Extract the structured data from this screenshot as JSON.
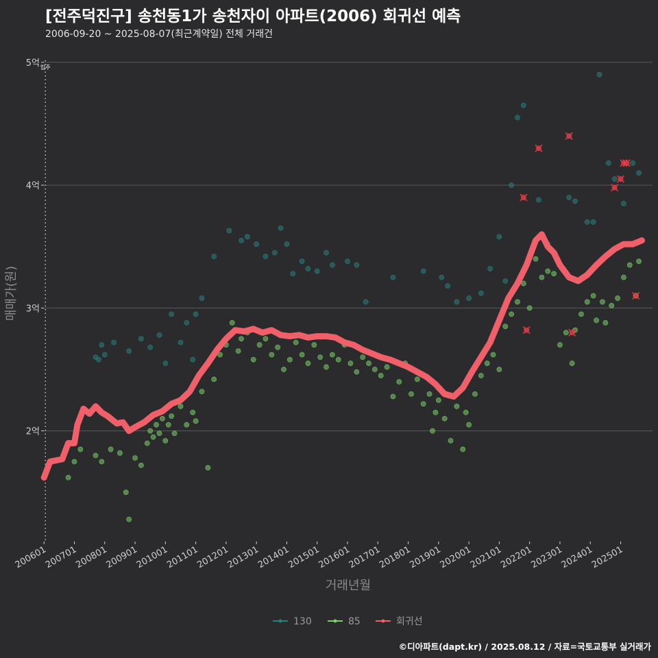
{
  "header": {
    "title": "[전주덕진구] 송천동1가 송천자이 아파트(2006) 회귀선 예측",
    "subtitle": "2006-09-20 ~ 2025-08-07(최근계약일) 전체 거래건"
  },
  "footer": {
    "credit": "©디아파트(dapt.kr) / 2025.08.12 / 자료=국토교통부 실거래가"
  },
  "colors": {
    "background": "#2b2b2d",
    "grid": "#5a5a5a",
    "series_130": "#2a7f7f",
    "series_85": "#7ccf6a",
    "regression": "#f0606a",
    "marker_x": "#e0303a"
  },
  "chart_data": {
    "type": "scatter",
    "title": "[전주덕진구] 송천동1가 송천자이 아파트(2006) 회귀선 예측",
    "xlabel": "거래년월",
    "ylabel": "매매가(원)",
    "xlim": [
      2005.95,
      2026.05
    ],
    "ylim": [
      1.1,
      5.15
    ],
    "y_ticks": [
      {
        "value": 2,
        "label": "2억"
      },
      {
        "value": 3,
        "label": "3억"
      },
      {
        "value": 4,
        "label": "4억"
      },
      {
        "value": 5,
        "label": "5억"
      }
    ],
    "x_ticks": [
      {
        "value": 2006,
        "label": "200601"
      },
      {
        "value": 2007,
        "label": "200701"
      },
      {
        "value": 2008,
        "label": "200801"
      },
      {
        "value": 2009,
        "label": "200901"
      },
      {
        "value": 2010,
        "label": "201001"
      },
      {
        "value": 2011,
        "label": "201101"
      },
      {
        "value": 2012,
        "label": "201201"
      },
      {
        "value": 2013,
        "label": "201301"
      },
      {
        "value": 2014,
        "label": "201401"
      },
      {
        "value": 2015,
        "label": "201501"
      },
      {
        "value": 2016,
        "label": "201601"
      },
      {
        "value": 2017,
        "label": "201701"
      },
      {
        "value": 2018,
        "label": "201801"
      },
      {
        "value": 2019,
        "label": "201901"
      },
      {
        "value": 2020,
        "label": "202001"
      },
      {
        "value": 2021,
        "label": "202101"
      },
      {
        "value": 2022,
        "label": "202201"
      },
      {
        "value": 2023,
        "label": "202301"
      },
      {
        "value": 2024,
        "label": "202401"
      },
      {
        "value": 2025,
        "label": "202501"
      }
    ],
    "annotation": {
      "x": 2006.0,
      "label": "입주"
    },
    "legend": [
      {
        "name": "130",
        "color": "#2a7f7f"
      },
      {
        "name": "85",
        "color": "#7ccf6a"
      },
      {
        "name": "회귀선",
        "color": "#f0606a"
      }
    ],
    "series": [
      {
        "name": "130",
        "points": [
          [
            2007.7,
            2.6
          ],
          [
            2007.8,
            2.58
          ],
          [
            2007.9,
            2.7
          ],
          [
            2008.0,
            2.62
          ],
          [
            2008.3,
            2.72
          ],
          [
            2008.8,
            2.65
          ],
          [
            2009.2,
            2.75
          ],
          [
            2009.5,
            2.68
          ],
          [
            2009.8,
            2.78
          ],
          [
            2010.0,
            2.55
          ],
          [
            2010.2,
            2.95
          ],
          [
            2010.5,
            2.72
          ],
          [
            2010.7,
            2.88
          ],
          [
            2010.9,
            2.58
          ],
          [
            2011.0,
            2.95
          ],
          [
            2011.2,
            3.08
          ],
          [
            2011.6,
            3.42
          ],
          [
            2012.1,
            3.63
          ],
          [
            2012.5,
            3.55
          ],
          [
            2012.7,
            3.58
          ],
          [
            2013.0,
            3.52
          ],
          [
            2013.3,
            3.42
          ],
          [
            2013.6,
            3.45
          ],
          [
            2013.8,
            3.65
          ],
          [
            2014.0,
            3.52
          ],
          [
            2014.2,
            3.28
          ],
          [
            2014.5,
            3.38
          ],
          [
            2014.7,
            3.32
          ],
          [
            2015.0,
            3.3
          ],
          [
            2015.3,
            3.45
          ],
          [
            2015.5,
            3.35
          ],
          [
            2016.0,
            3.38
          ],
          [
            2016.3,
            3.35
          ],
          [
            2016.6,
            3.05
          ],
          [
            2017.5,
            3.25
          ],
          [
            2018.5,
            3.3
          ],
          [
            2019.1,
            3.25
          ],
          [
            2019.3,
            3.18
          ],
          [
            2019.6,
            3.05
          ],
          [
            2020.0,
            3.08
          ],
          [
            2020.4,
            3.12
          ],
          [
            2020.7,
            3.32
          ],
          [
            2021.0,
            3.58
          ],
          [
            2021.2,
            3.22
          ],
          [
            2021.4,
            4.0
          ],
          [
            2021.6,
            4.55
          ],
          [
            2021.8,
            4.65
          ],
          [
            2022.3,
            3.88
          ],
          [
            2022.6,
            3.52
          ],
          [
            2023.3,
            3.9
          ],
          [
            2023.5,
            3.87
          ],
          [
            2023.9,
            3.7
          ],
          [
            2024.1,
            3.7
          ],
          [
            2024.3,
            4.9
          ],
          [
            2024.6,
            4.18
          ],
          [
            2024.8,
            4.05
          ],
          [
            2025.1,
            3.85
          ],
          [
            2025.4,
            4.18
          ],
          [
            2025.6,
            4.1
          ]
        ]
      },
      {
        "name": "85",
        "points": [
          [
            2006.8,
            1.62
          ],
          [
            2007.0,
            1.75
          ],
          [
            2007.2,
            1.85
          ],
          [
            2007.7,
            1.8
          ],
          [
            2007.9,
            1.75
          ],
          [
            2008.2,
            1.85
          ],
          [
            2008.5,
            1.82
          ],
          [
            2008.7,
            1.5
          ],
          [
            2008.8,
            1.28
          ],
          [
            2009.0,
            1.78
          ],
          [
            2009.2,
            1.72
          ],
          [
            2009.4,
            1.9
          ],
          [
            2009.5,
            2.0
          ],
          [
            2009.6,
            1.95
          ],
          [
            2009.7,
            2.05
          ],
          [
            2009.8,
            1.98
          ],
          [
            2009.9,
            2.1
          ],
          [
            2010.0,
            1.92
          ],
          [
            2010.1,
            2.05
          ],
          [
            2010.2,
            2.12
          ],
          [
            2010.3,
            1.98
          ],
          [
            2010.5,
            2.2
          ],
          [
            2010.7,
            2.05
          ],
          [
            2010.9,
            2.15
          ],
          [
            2011.0,
            2.08
          ],
          [
            2011.2,
            2.32
          ],
          [
            2011.4,
            1.7
          ],
          [
            2011.6,
            2.42
          ],
          [
            2011.8,
            2.62
          ],
          [
            2012.0,
            2.7
          ],
          [
            2012.2,
            2.88
          ],
          [
            2012.4,
            2.65
          ],
          [
            2012.5,
            2.75
          ],
          [
            2012.7,
            2.8
          ],
          [
            2012.9,
            2.58
          ],
          [
            2013.1,
            2.7
          ],
          [
            2013.3,
            2.75
          ],
          [
            2013.5,
            2.62
          ],
          [
            2013.7,
            2.68
          ],
          [
            2013.9,
            2.5
          ],
          [
            2014.1,
            2.58
          ],
          [
            2014.3,
            2.72
          ],
          [
            2014.5,
            2.62
          ],
          [
            2014.7,
            2.55
          ],
          [
            2014.9,
            2.7
          ],
          [
            2015.1,
            2.6
          ],
          [
            2015.3,
            2.52
          ],
          [
            2015.5,
            2.62
          ],
          [
            2015.7,
            2.58
          ],
          [
            2015.9,
            2.7
          ],
          [
            2016.1,
            2.55
          ],
          [
            2016.3,
            2.48
          ],
          [
            2016.5,
            2.6
          ],
          [
            2016.7,
            2.55
          ],
          [
            2016.9,
            2.5
          ],
          [
            2017.1,
            2.45
          ],
          [
            2017.3,
            2.52
          ],
          [
            2017.5,
            2.28
          ],
          [
            2017.7,
            2.4
          ],
          [
            2017.9,
            2.55
          ],
          [
            2018.1,
            2.3
          ],
          [
            2018.3,
            2.42
          ],
          [
            2018.5,
            2.22
          ],
          [
            2018.7,
            2.3
          ],
          [
            2018.8,
            2.0
          ],
          [
            2018.9,
            2.15
          ],
          [
            2019.0,
            2.25
          ],
          [
            2019.2,
            2.1
          ],
          [
            2019.4,
            1.92
          ],
          [
            2019.6,
            2.2
          ],
          [
            2019.8,
            1.85
          ],
          [
            2019.9,
            2.15
          ],
          [
            2020.0,
            2.05
          ],
          [
            2020.2,
            2.3
          ],
          [
            2020.4,
            2.45
          ],
          [
            2020.6,
            2.55
          ],
          [
            2020.8,
            2.62
          ],
          [
            2021.0,
            2.5
          ],
          [
            2021.2,
            2.85
          ],
          [
            2021.4,
            2.95
          ],
          [
            2021.6,
            3.05
          ],
          [
            2021.8,
            3.2
          ],
          [
            2022.0,
            3.0
          ],
          [
            2022.2,
            3.4
          ],
          [
            2022.4,
            3.25
          ],
          [
            2022.6,
            3.3
          ],
          [
            2022.8,
            3.28
          ],
          [
            2023.0,
            2.7
          ],
          [
            2023.2,
            2.8
          ],
          [
            2023.4,
            2.55
          ],
          [
            2023.5,
            2.82
          ],
          [
            2023.7,
            2.95
          ],
          [
            2023.9,
            3.05
          ],
          [
            2024.1,
            3.1
          ],
          [
            2024.2,
            2.9
          ],
          [
            2024.4,
            3.05
          ],
          [
            2024.5,
            2.88
          ],
          [
            2024.7,
            3.02
          ],
          [
            2024.9,
            3.08
          ],
          [
            2025.1,
            3.25
          ],
          [
            2025.3,
            3.35
          ],
          [
            2025.5,
            3.1
          ],
          [
            2025.6,
            3.38
          ]
        ]
      },
      {
        "name": "회귀선",
        "points": [
          [
            2006.0,
            1.62
          ],
          [
            2006.2,
            1.75
          ],
          [
            2006.6,
            1.77
          ],
          [
            2006.8,
            1.9
          ],
          [
            2007.0,
            1.9
          ],
          [
            2007.1,
            2.05
          ],
          [
            2007.3,
            2.18
          ],
          [
            2007.5,
            2.14
          ],
          [
            2007.7,
            2.2
          ],
          [
            2007.9,
            2.15
          ],
          [
            2008.1,
            2.12
          ],
          [
            2008.4,
            2.06
          ],
          [
            2008.6,
            2.07
          ],
          [
            2008.8,
            2.0
          ],
          [
            2009.0,
            2.03
          ],
          [
            2009.3,
            2.07
          ],
          [
            2009.6,
            2.13
          ],
          [
            2009.9,
            2.16
          ],
          [
            2010.2,
            2.22
          ],
          [
            2010.5,
            2.25
          ],
          [
            2010.8,
            2.32
          ],
          [
            2011.1,
            2.45
          ],
          [
            2011.4,
            2.55
          ],
          [
            2011.7,
            2.66
          ],
          [
            2012.0,
            2.75
          ],
          [
            2012.3,
            2.82
          ],
          [
            2012.6,
            2.81
          ],
          [
            2012.9,
            2.83
          ],
          [
            2013.2,
            2.8
          ],
          [
            2013.5,
            2.82
          ],
          [
            2013.8,
            2.78
          ],
          [
            2014.1,
            2.77
          ],
          [
            2014.4,
            2.78
          ],
          [
            2014.7,
            2.76
          ],
          [
            2015.0,
            2.77
          ],
          [
            2015.3,
            2.77
          ],
          [
            2015.6,
            2.76
          ],
          [
            2015.9,
            2.72
          ],
          [
            2016.2,
            2.7
          ],
          [
            2016.5,
            2.66
          ],
          [
            2016.8,
            2.63
          ],
          [
            2017.1,
            2.6
          ],
          [
            2017.4,
            2.58
          ],
          [
            2017.7,
            2.55
          ],
          [
            2018.0,
            2.52
          ],
          [
            2018.3,
            2.48
          ],
          [
            2018.6,
            2.44
          ],
          [
            2018.9,
            2.38
          ],
          [
            2019.2,
            2.3
          ],
          [
            2019.5,
            2.28
          ],
          [
            2019.8,
            2.35
          ],
          [
            2020.1,
            2.48
          ],
          [
            2020.4,
            2.6
          ],
          [
            2020.7,
            2.72
          ],
          [
            2021.0,
            2.9
          ],
          [
            2021.3,
            3.08
          ],
          [
            2021.6,
            3.2
          ],
          [
            2021.9,
            3.35
          ],
          [
            2022.2,
            3.55
          ],
          [
            2022.4,
            3.6
          ],
          [
            2022.6,
            3.5
          ],
          [
            2022.8,
            3.45
          ],
          [
            2023.0,
            3.35
          ],
          [
            2023.3,
            3.25
          ],
          [
            2023.6,
            3.22
          ],
          [
            2023.9,
            3.27
          ],
          [
            2024.2,
            3.35
          ],
          [
            2024.5,
            3.42
          ],
          [
            2024.8,
            3.48
          ],
          [
            2025.1,
            3.52
          ],
          [
            2025.4,
            3.52
          ],
          [
            2025.7,
            3.55
          ]
        ]
      },
      {
        "name": "markers",
        "points": [
          [
            2021.8,
            3.9
          ],
          [
            2021.9,
            2.82
          ],
          [
            2022.3,
            4.3
          ],
          [
            2023.3,
            4.4
          ],
          [
            2023.4,
            2.8
          ],
          [
            2024.8,
            3.98
          ],
          [
            2025.0,
            4.05
          ],
          [
            2025.1,
            4.18
          ],
          [
            2025.2,
            4.18
          ],
          [
            2025.5,
            3.1
          ]
        ]
      }
    ]
  }
}
